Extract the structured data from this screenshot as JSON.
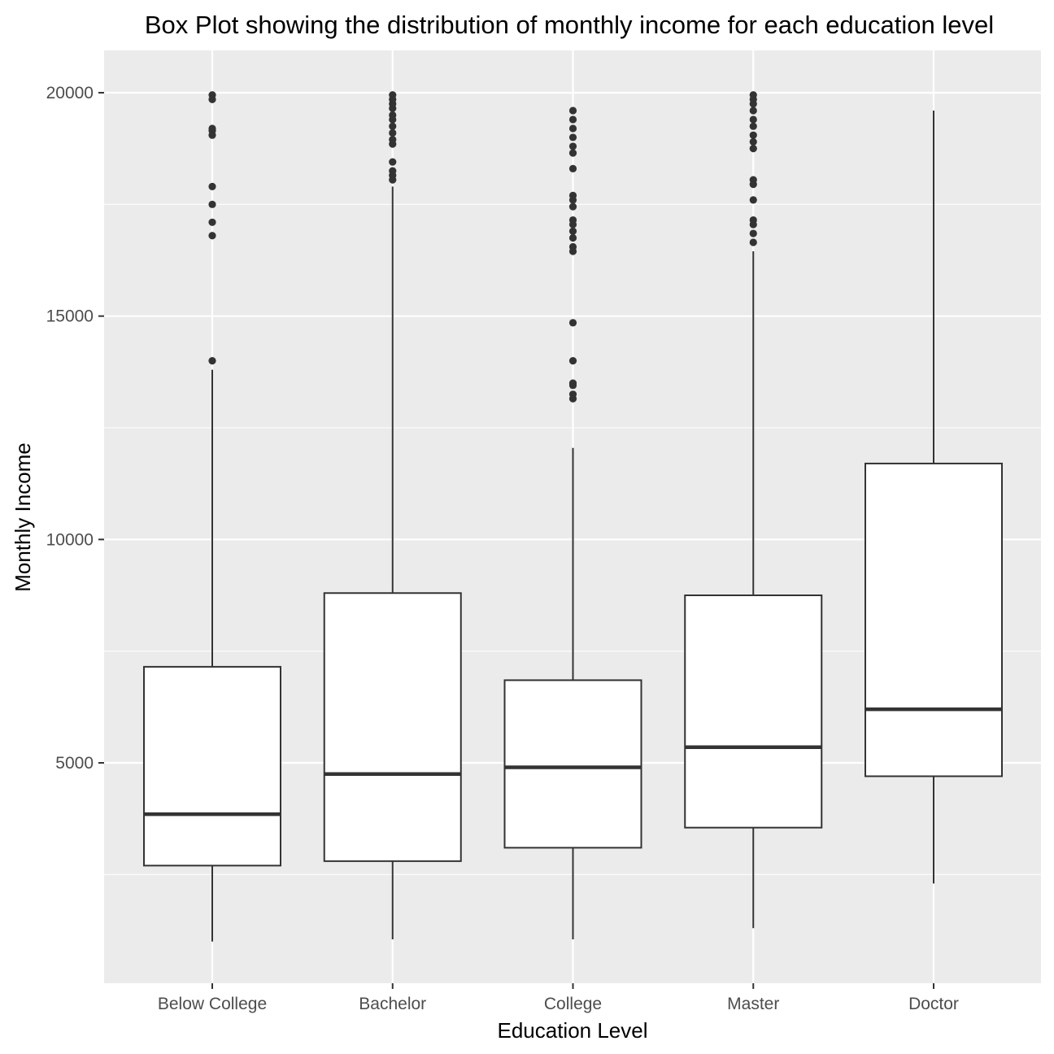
{
  "chart_data": {
    "type": "box",
    "title": "Box Plot showing the distribution of monthly income for each education level",
    "xlabel": "Education Level",
    "ylabel": "Monthly Income",
    "ylim": [
      0,
      20950
    ],
    "yticks": [
      5000,
      10000,
      15000,
      20000
    ],
    "categories": [
      "Below College",
      "Bachelor",
      "College",
      "Master",
      "Doctor"
    ],
    "grid": true,
    "legend": "none",
    "colors": {
      "panel_bg": "#ebebeb",
      "grid": "#ffffff",
      "box_fill": "#ffffff",
      "box_line": "#333333",
      "outlier": "#333333",
      "tick_text": "#4d4d4d"
    },
    "boxes": [
      {
        "category": "Below College",
        "whisker_low": 1000,
        "q1": 2700,
        "median": 3850,
        "q3": 7150,
        "whisker_high": 13800,
        "outliers": [
          14000,
          16800,
          17100,
          17500,
          17900,
          19050,
          19150,
          19200,
          19850,
          19950
        ]
      },
      {
        "category": "Bachelor",
        "whisker_low": 1050,
        "q1": 2800,
        "median": 4750,
        "q3": 8800,
        "whisker_high": 17900,
        "outliers": [
          18050,
          18150,
          18250,
          18450,
          18850,
          18950,
          19100,
          19250,
          19400,
          19500,
          19650,
          19750,
          19850,
          19950
        ]
      },
      {
        "category": "College",
        "whisker_low": 1050,
        "q1": 3100,
        "median": 4900,
        "q3": 6850,
        "whisker_high": 12050,
        "outliers": [
          13150,
          13250,
          13450,
          13500,
          14000,
          14850,
          16450,
          16550,
          16750,
          16900,
          17050,
          17150,
          17450,
          17600,
          17700,
          18300,
          18650,
          18800,
          19000,
          19200,
          19400,
          19600
        ]
      },
      {
        "category": "Master",
        "whisker_low": 1300,
        "q1": 3550,
        "median": 5350,
        "q3": 8750,
        "whisker_high": 16450,
        "outliers": [
          16650,
          16850,
          17050,
          17150,
          17600,
          17950,
          18050,
          18750,
          18900,
          19050,
          19250,
          19400,
          19600,
          19750,
          19850,
          19950
        ]
      },
      {
        "category": "Doctor",
        "whisker_low": 2300,
        "q1": 4700,
        "median": 6200,
        "q3": 11700,
        "whisker_high": 19600,
        "outliers": []
      }
    ]
  }
}
